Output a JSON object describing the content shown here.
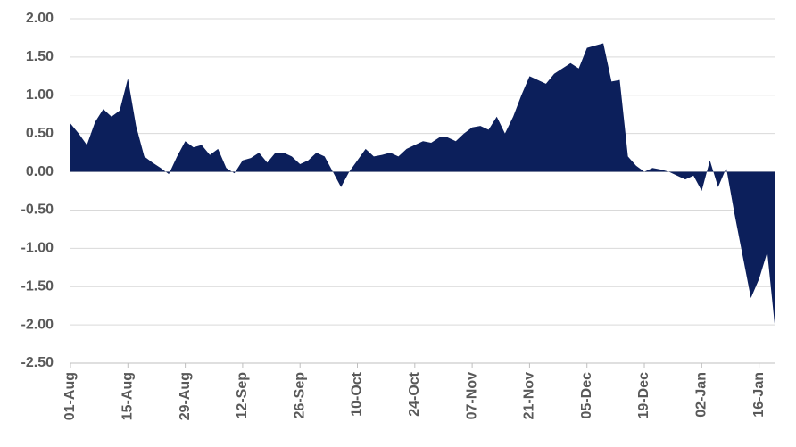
{
  "chart_data": {
    "type": "area",
    "color": "#0c1f5b",
    "grid": true,
    "categories": [
      "01-Aug",
      null,
      null,
      null,
      null,
      null,
      null,
      "15-Aug",
      null,
      null,
      null,
      null,
      null,
      null,
      "29-Aug",
      null,
      null,
      null,
      null,
      null,
      null,
      "12-Sep",
      null,
      null,
      null,
      null,
      null,
      null,
      "26-Sep",
      null,
      null,
      null,
      null,
      null,
      null,
      "10-Oct",
      null,
      null,
      null,
      null,
      null,
      null,
      "24-Oct",
      null,
      null,
      null,
      null,
      null,
      null,
      "07-Nov",
      null,
      null,
      null,
      null,
      null,
      null,
      "21-Nov",
      null,
      null,
      null,
      null,
      null,
      null,
      "05-Dec",
      null,
      null,
      null,
      null,
      null,
      null,
      "19-Dec",
      null,
      null,
      null,
      null,
      null,
      null,
      "02-Jan",
      null,
      null,
      null,
      null,
      null,
      null,
      "16-Jan",
      null,
      null
    ],
    "values": [
      0.63,
      0.5,
      0.35,
      0.65,
      0.82,
      0.72,
      0.8,
      1.22,
      0.6,
      0.2,
      0.12,
      0.05,
      -0.03,
      0.2,
      0.4,
      0.32,
      0.35,
      0.22,
      0.3,
      0.05,
      -0.02,
      0.15,
      0.18,
      0.25,
      0.12,
      0.25,
      0.25,
      0.2,
      0.1,
      0.15,
      0.25,
      0.2,
      0.0,
      -0.2,
      0.0,
      0.15,
      0.3,
      0.2,
      0.22,
      0.25,
      0.2,
      0.3,
      0.35,
      0.4,
      0.38,
      0.45,
      0.45,
      0.4,
      0.5,
      0.58,
      0.6,
      0.55,
      0.72,
      0.5,
      0.72,
      1.0,
      1.25,
      1.2,
      1.15,
      1.28,
      1.35,
      1.42,
      1.35,
      1.62,
      1.65,
      1.68,
      1.18,
      1.2,
      0.2,
      0.08,
      0.0,
      0.05,
      0.03,
      0.0,
      -0.05,
      -0.1,
      -0.05,
      -0.25,
      0.15,
      -0.2,
      0.05,
      -0.55,
      -1.1,
      -1.65,
      -1.4,
      -1.05,
      -2.1
    ],
    "ylim": [
      -2.5,
      2
    ],
    "yticks": [
      {
        "value": -2.5,
        "label": "-2.50"
      },
      {
        "value": -2,
        "label": "-2.00"
      },
      {
        "value": -1.5,
        "label": "-1.50"
      },
      {
        "value": -1,
        "label": "-1.00"
      },
      {
        "value": -0.5,
        "label": "-0.50"
      },
      {
        "value": 0,
        "label": "0.00"
      },
      {
        "value": 0.5,
        "label": "0.50"
      },
      {
        "value": 1,
        "label": "1.00"
      },
      {
        "value": 1.5,
        "label": "1.50"
      },
      {
        "value": 2,
        "label": "2.00"
      }
    ]
  }
}
